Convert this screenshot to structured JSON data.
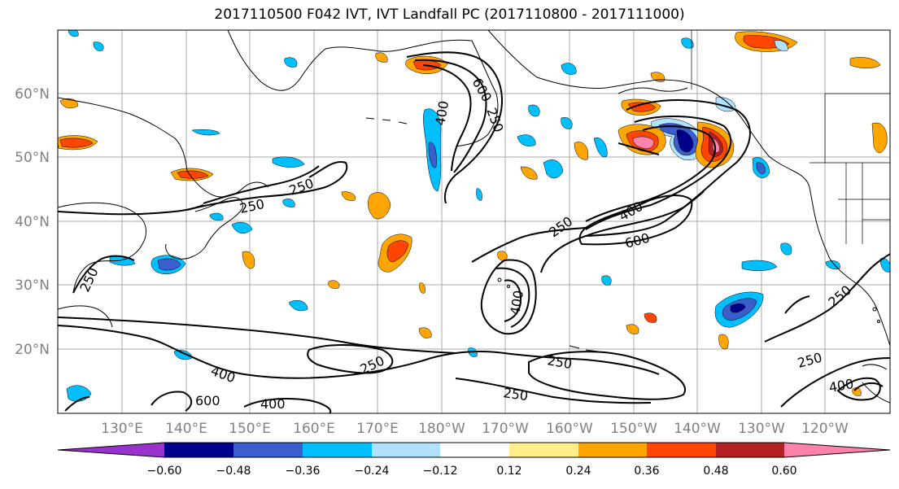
{
  "title": "2017110500 F042 IVT, IVT Landfall PC (2017110800 - 2017111000)",
  "lat_labels": [
    "60°N",
    "50°N",
    "40°N",
    "30°N",
    "20°N"
  ],
  "lon_labels": [
    "130°E",
    "140°E",
    "150°E",
    "160°E",
    "170°E",
    "180°W",
    "170°W",
    "160°W",
    "150°W",
    "140°W",
    "130°W",
    "120°W"
  ],
  "contour_labels": [
    "250",
    "400",
    "600"
  ],
  "colorbar": {
    "colors": [
      "#9a32cd",
      "#00008b",
      "#3a5fcd",
      "#00bfff",
      "#b0e2ff",
      "#ffffff",
      "#ffec8b",
      "#ffa500",
      "#ff4500",
      "#b22222",
      "#ff82ab"
    ],
    "tick_labels": [
      "−0.60",
      "−0.48",
      "−0.36",
      "−0.24",
      "−0.12",
      "0.12",
      "0.24",
      "0.36",
      "0.48",
      "0.60"
    ]
  },
  "colors": {
    "axis_label": "#808080",
    "grid": "#aaaaaa",
    "contour": "#000000"
  }
}
